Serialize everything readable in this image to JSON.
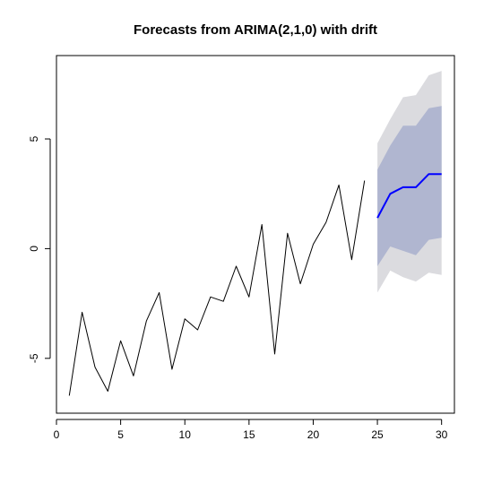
{
  "chart_data": {
    "type": "line",
    "title": "Forecasts from ARIMA(2,1,0) with drift",
    "xlabel": "",
    "ylabel": "",
    "xlim": [
      0,
      31
    ],
    "ylim": [
      -7.5,
      8.8
    ],
    "xticks": [
      0,
      5,
      10,
      15,
      20,
      25,
      30
    ],
    "yticks": [
      -5,
      0,
      5
    ],
    "grid": false,
    "legend": "none",
    "colors": {
      "observed": "#000000",
      "forecast": "#0000ff",
      "band_95": "#dbdbdf",
      "band_80": "#b0b6d0"
    },
    "series": [
      {
        "role": "observed",
        "x": [
          1,
          2,
          3,
          4,
          5,
          6,
          7,
          8,
          9,
          10,
          11,
          12,
          13,
          14,
          15,
          16,
          17,
          18,
          19,
          20,
          21,
          22,
          23,
          24
        ],
        "y": [
          -6.7,
          -2.9,
          -5.4,
          -6.5,
          -4.2,
          -5.8,
          -3.3,
          -2.0,
          -5.5,
          -3.2,
          -3.7,
          -2.2,
          -2.4,
          -0.8,
          -2.2,
          1.1,
          -4.8,
          0.7,
          -1.6,
          0.2,
          1.2,
          2.9,
          -0.5,
          3.1
        ]
      },
      {
        "role": "forecast",
        "x": [
          25,
          26,
          27,
          28,
          29,
          30
        ],
        "y": [
          1.4,
          2.5,
          2.8,
          2.8,
          3.4,
          3.4
        ]
      }
    ],
    "intervals": {
      "x": [
        25,
        26,
        27,
        28,
        29,
        30
      ],
      "lo95": [
        -2.0,
        -1.0,
        -1.3,
        -1.5,
        -1.1,
        -1.2
      ],
      "hi95": [
        4.8,
        5.9,
        6.9,
        7.0,
        7.9,
        8.1
      ],
      "lo80": [
        -0.8,
        0.1,
        -0.1,
        -0.3,
        0.4,
        0.5
      ],
      "hi80": [
        3.6,
        4.7,
        5.6,
        5.6,
        6.4,
        6.5
      ]
    }
  }
}
